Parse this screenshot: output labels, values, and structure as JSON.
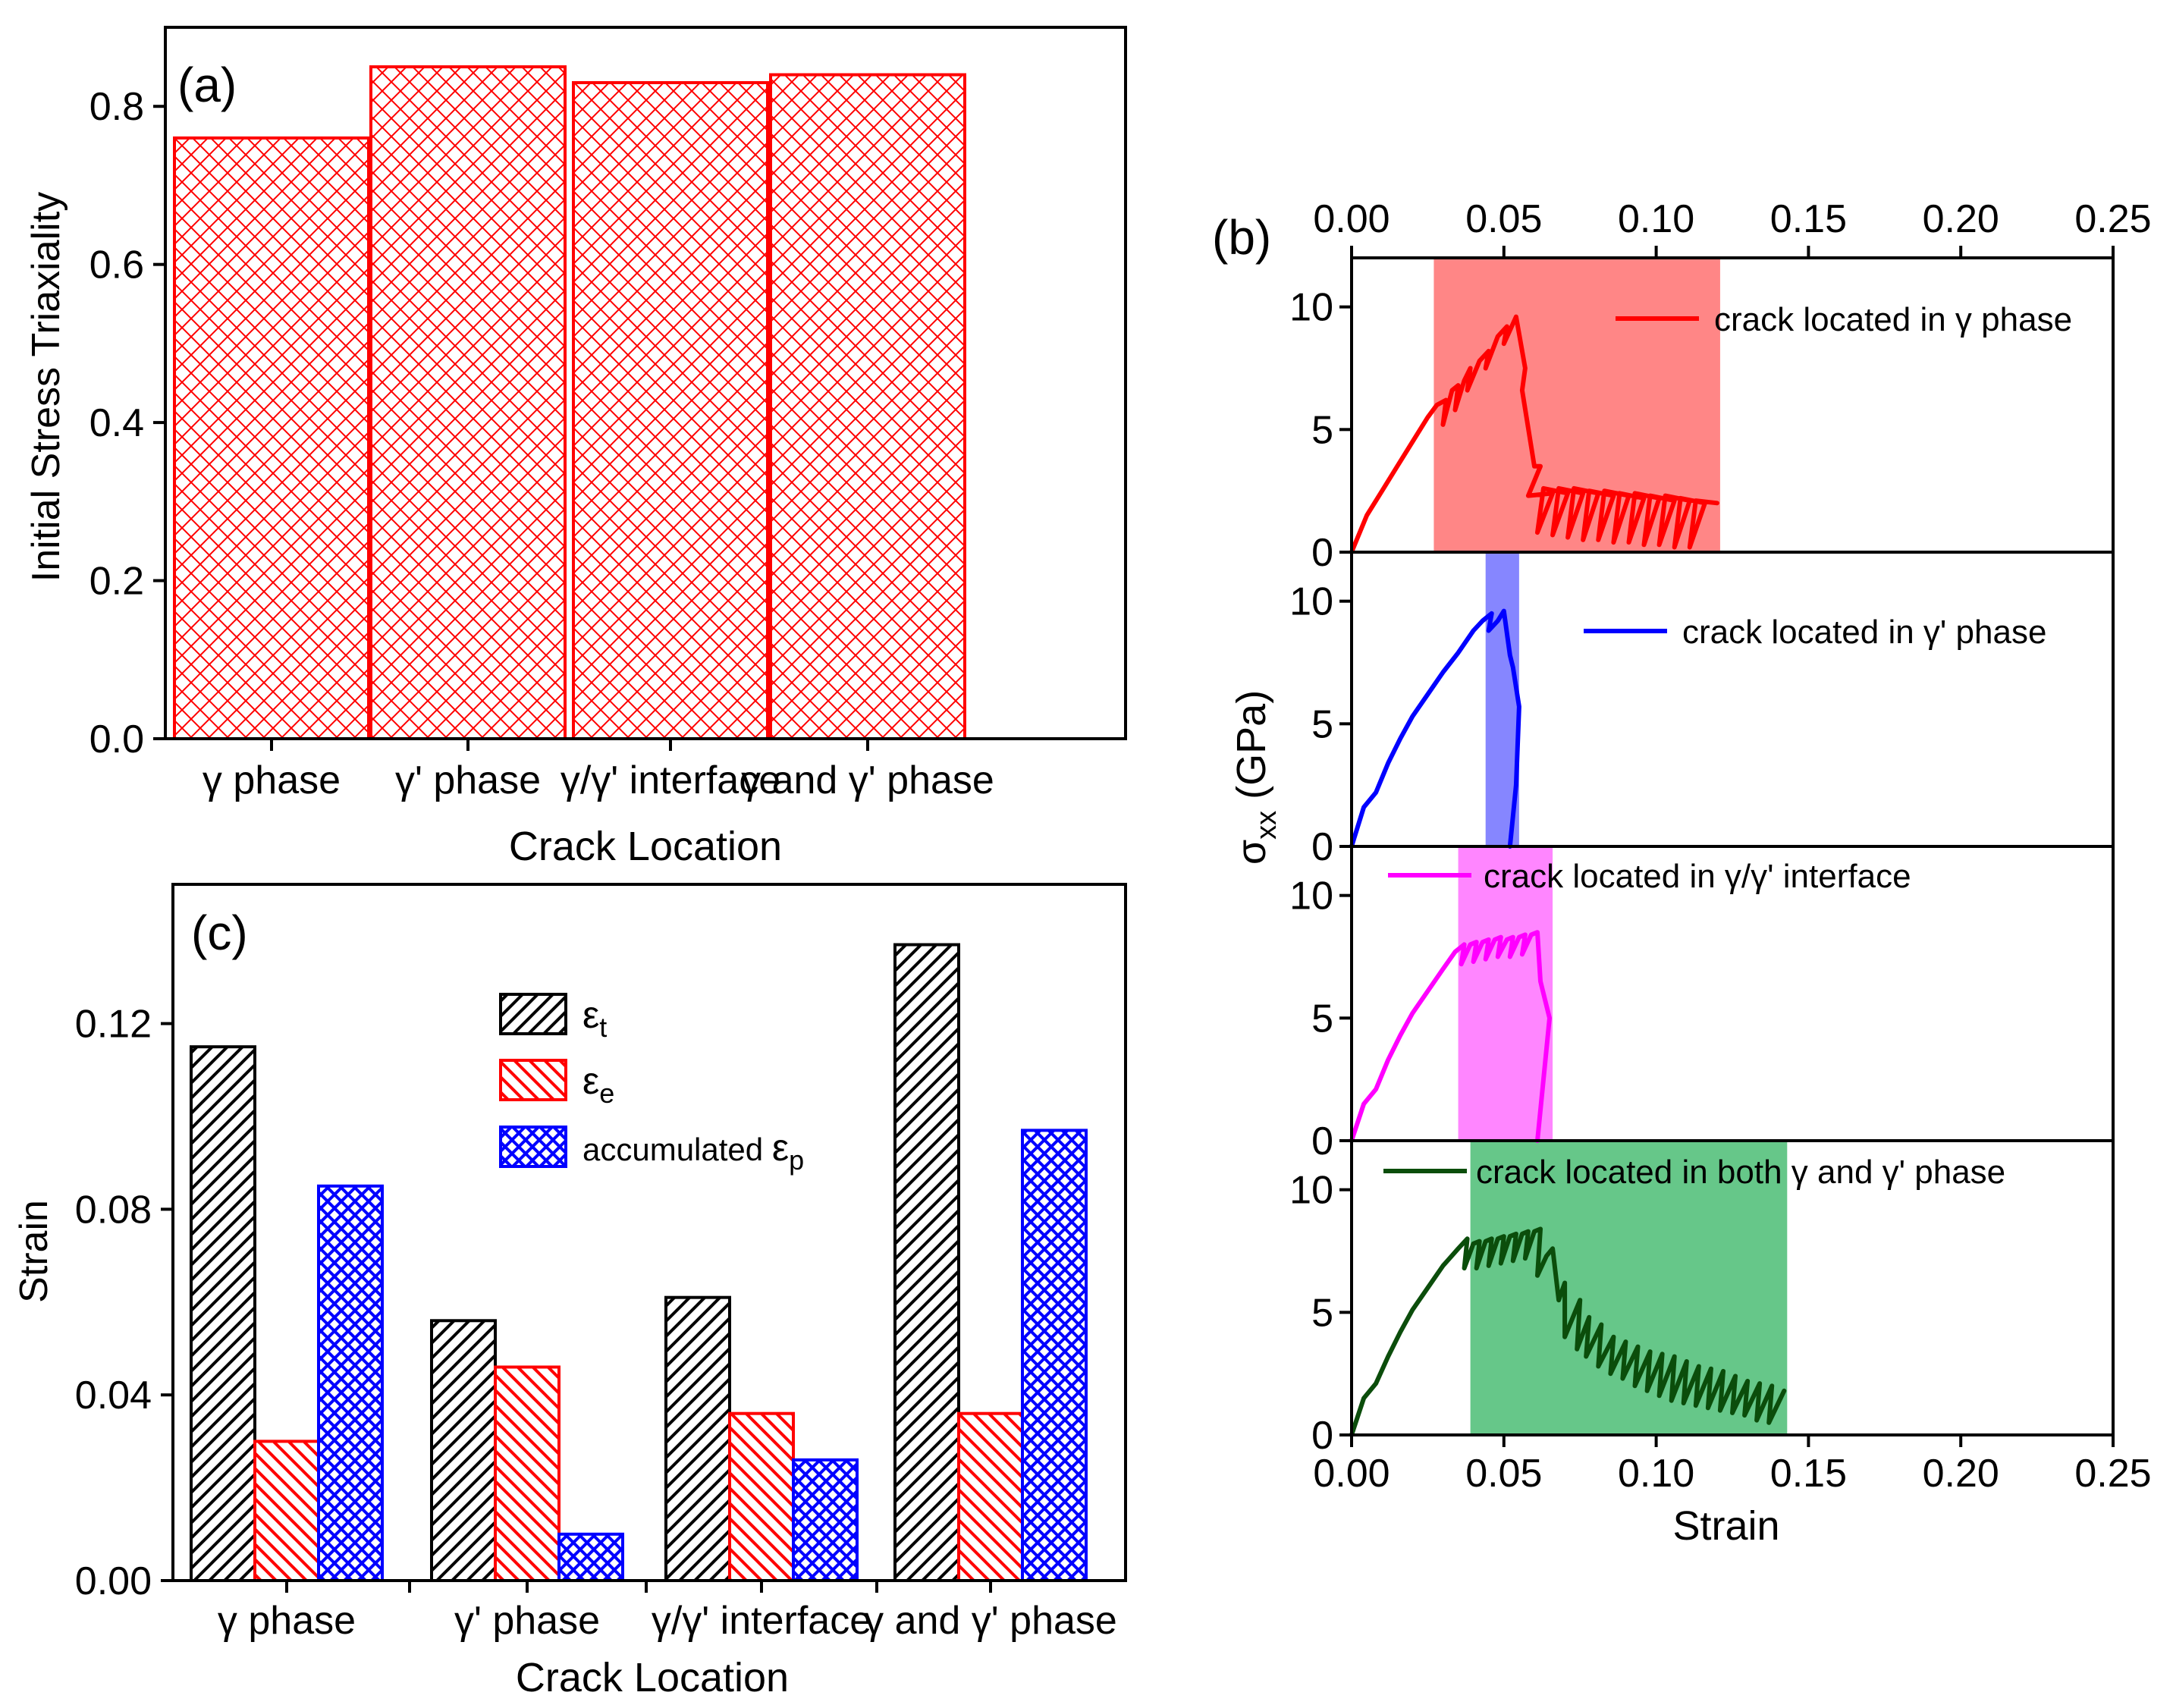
{
  "colors": {
    "red": "#ff0000",
    "blue": "#0000ff",
    "magenta": "#ff00ff",
    "dark_green": "#0b4d0b",
    "red_band": "#ff8080",
    "blue_band": "#8080ff",
    "magenta_band": "#ff80ff",
    "green_band": "#5ec483",
    "black": "#000000"
  },
  "chart_data": [
    {
      "panel": "(a)",
      "type": "bar",
      "ylabel": "Initial Stress Triaxiality",
      "xlabel": "Crack Location",
      "categories": [
        "γ phase",
        "γ' phase",
        "γ/γ' interface",
        "γ and γ' phase"
      ],
      "values": [
        0.76,
        0.85,
        0.83,
        0.84
      ],
      "ylim": [
        0,
        0.9
      ],
      "yticks": [
        "0.0",
        "0.2",
        "0.4",
        "0.6",
        "0.8"
      ],
      "bar_style": "red cross-hatch"
    },
    {
      "panel": "(b)",
      "type": "line",
      "xlabel": "Strain",
      "ylabel": "σxx (GPa)",
      "xlim": [
        0,
        0.25
      ],
      "ylim": [
        0,
        12
      ],
      "xticks": [
        "0.00",
        "0.05",
        "0.10",
        "0.15",
        "0.20",
        "0.25"
      ],
      "yticks": [
        "0",
        "5",
        "10"
      ],
      "series": [
        {
          "name": "crack located in γ phase",
          "color": "red",
          "band": [
            0.027,
            0.121
          ],
          "x": [
            0,
            0.005,
            0.01,
            0.015,
            0.02,
            0.025,
            0.028,
            0.031,
            0.03,
            0.033,
            0.035,
            0.034,
            0.037,
            0.039,
            0.038,
            0.042,
            0.045,
            0.044,
            0.048,
            0.051,
            0.05,
            0.054,
            0.057,
            0.056,
            0.06,
            0.062,
            0.058,
            0.066,
            0.061,
            0.063,
            0.071,
            0.066,
            0.068,
            0.076,
            0.071,
            0.073,
            0.081,
            0.076,
            0.078,
            0.086,
            0.081,
            0.083,
            0.091,
            0.086,
            0.088,
            0.096,
            0.091,
            0.093,
            0.101,
            0.096,
            0.098,
            0.106,
            0.101,
            0.103,
            0.111,
            0.106,
            0.108,
            0.116,
            0.111,
            0.113,
            0.12
          ],
          "y": [
            0,
            1.5,
            2.5,
            3.5,
            4.5,
            5.5,
            6,
            6.2,
            5.2,
            6.6,
            6.8,
            5.8,
            7,
            7.5,
            6.6,
            7.8,
            8.2,
            7.5,
            8.8,
            9.2,
            8.5,
            9.6,
            7.5,
            6.6,
            3.5,
            3.5,
            2.3,
            2.4,
            0.8,
            2.6,
            2.4,
            0.7,
            2.6,
            2.4,
            0.6,
            2.6,
            2.4,
            0.5,
            2.5,
            2.3,
            0.5,
            2.5,
            2.3,
            0.4,
            2.4,
            2.2,
            0.4,
            2.4,
            2.2,
            0.3,
            2.3,
            2.1,
            0.3,
            2.3,
            2.1,
            0.2,
            2.2,
            2,
            0.2,
            2.1,
            2
          ]
        },
        {
          "name": "crack located in γ' phase",
          "color": "blue",
          "band": [
            0.044,
            0.055
          ],
          "x": [
            0,
            0.004,
            0.008,
            0.012,
            0.016,
            0.02,
            0.025,
            0.03,
            0.035,
            0.04,
            0.043,
            0.046,
            0.045,
            0.048,
            0.05,
            0.052,
            0.053,
            0.055,
            0.054,
            0.052
          ],
          "y": [
            0,
            1.6,
            2.2,
            3.4,
            4.4,
            5.3,
            6.2,
            7.1,
            7.9,
            8.8,
            9.2,
            9.5,
            8.8,
            9.2,
            9.6,
            7.8,
            7.3,
            5.7,
            2.5,
            0
          ]
        },
        {
          "name": "crack located in γ/γ' interface",
          "color": "magenta",
          "band": [
            0.035,
            0.066
          ],
          "x": [
            0,
            0.004,
            0.008,
            0.012,
            0.016,
            0.02,
            0.025,
            0.03,
            0.034,
            0.037,
            0.036,
            0.039,
            0.041,
            0.04,
            0.043,
            0.045,
            0.044,
            0.047,
            0.049,
            0.048,
            0.051,
            0.053,
            0.052,
            0.055,
            0.057,
            0.056,
            0.059,
            0.061,
            0.062,
            0.065,
            0.063,
            0.061
          ],
          "y": [
            0,
            1.5,
            2.1,
            3.3,
            4.3,
            5.2,
            6.1,
            7,
            7.7,
            8,
            7.2,
            8,
            8.1,
            7.3,
            8.1,
            8.2,
            7.4,
            8.2,
            8.3,
            7.5,
            8.2,
            8.3,
            7.5,
            8.3,
            8.4,
            7.6,
            8.4,
            8.5,
            6.5,
            5,
            2.5,
            0
          ]
        },
        {
          "name": "crack located in both γ and γ' phase",
          "color": "dark_green",
          "band": [
            0.039,
            0.143
          ],
          "x": [
            0,
            0.004,
            0.008,
            0.012,
            0.016,
            0.02,
            0.025,
            0.03,
            0.035,
            0.038,
            0.037,
            0.04,
            0.042,
            0.041,
            0.044,
            0.046,
            0.045,
            0.048,
            0.05,
            0.049,
            0.052,
            0.054,
            0.053,
            0.056,
            0.058,
            0.057,
            0.06,
            0.062,
            0.061,
            0.064,
            0.066,
            0.068,
            0.07,
            0.07,
            0.075,
            0.074,
            0.078,
            0.077,
            0.082,
            0.081,
            0.086,
            0.085,
            0.09,
            0.089,
            0.094,
            0.093,
            0.098,
            0.097,
            0.102,
            0.101,
            0.106,
            0.105,
            0.11,
            0.109,
            0.114,
            0.113,
            0.118,
            0.117,
            0.122,
            0.121,
            0.126,
            0.125,
            0.13,
            0.129,
            0.134,
            0.133,
            0.138,
            0.137,
            0.142
          ],
          "y": [
            0,
            1.5,
            2.1,
            3.2,
            4.2,
            5.1,
            6,
            6.9,
            7.6,
            8,
            6.8,
            7.8,
            7.9,
            6.8,
            7.9,
            8,
            6.9,
            8,
            8.1,
            7,
            8.1,
            8.2,
            7.1,
            8.2,
            8.3,
            7.2,
            8.3,
            8.4,
            6.5,
            7.3,
            7.6,
            5.5,
            6.2,
            4,
            5.5,
            3.5,
            4.8,
            3.2,
            4.5,
            2.8,
            4,
            2.5,
            3.8,
            2.3,
            3.6,
            2,
            3.4,
            1.8,
            3.3,
            1.6,
            3.2,
            1.4,
            3,
            1.3,
            2.8,
            1.2,
            2.7,
            1.1,
            2.6,
            1,
            2.4,
            0.9,
            2.2,
            0.8,
            2.1,
            0.6,
            2,
            0.5,
            1.8
          ]
        }
      ]
    },
    {
      "panel": "(c)",
      "type": "bar",
      "ylabel": "Strain",
      "xlabel": "Crack Location",
      "categories": [
        "γ phase",
        "γ' phase",
        "γ/γ' interface",
        "γ and γ' phase"
      ],
      "ylim": [
        0,
        0.15
      ],
      "yticks": [
        "0.00",
        "0.04",
        "0.08",
        "0.12"
      ],
      "legend": {
        "t": {
          "base": "ε",
          "sub": "t"
        },
        "e": {
          "base": "ε",
          "sub": "e"
        },
        "p": {
          "prefix": "accumulated ",
          "base": "ε",
          "sub": "p"
        }
      },
      "series": [
        {
          "name": "εt",
          "color": "black",
          "hatch": "diagonal",
          "values": [
            0.115,
            0.056,
            0.061,
            0.137
          ]
        },
        {
          "name": "εe",
          "color": "red",
          "hatch": "diagonal",
          "values": [
            0.03,
            0.046,
            0.036,
            0.036
          ]
        },
        {
          "name": "accumulated εp",
          "color": "blue",
          "hatch": "cross",
          "values": [
            0.085,
            0.01,
            0.026,
            0.097
          ]
        }
      ]
    }
  ]
}
